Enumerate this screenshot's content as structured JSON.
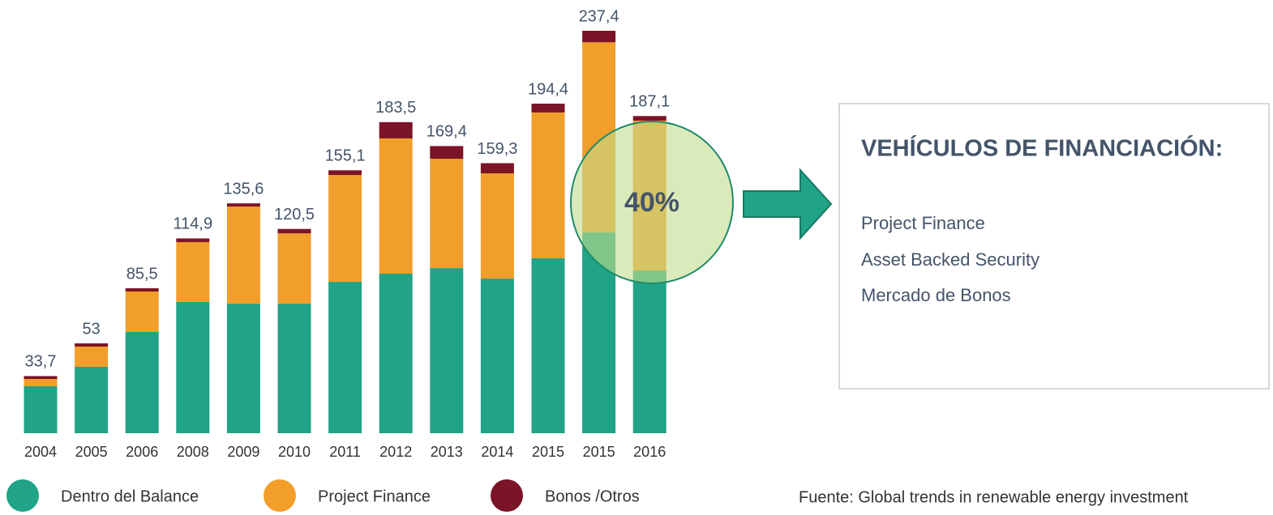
{
  "chart_data": {
    "type": "bar",
    "stacked": true,
    "categories": [
      "2004",
      "2005",
      "2006",
      "2008",
      "2009",
      "2010",
      "2011",
      "2012",
      "2013",
      "2014",
      "2015",
      "2015",
      "2016"
    ],
    "series": [
      {
        "name": "Dentro del Balance",
        "color": "#20a386",
        "values": [
          27.7,
          39.2,
          59.7,
          77.4,
          76.4,
          76.4,
          89.3,
          94.1,
          97.4,
          91.2,
          103.2,
          118.4,
          96.0
        ]
      },
      {
        "name": "Project Finance",
        "color": "#f19e2a",
        "values": [
          4.3,
          11.9,
          23.9,
          35.3,
          57.3,
          41.5,
          63.0,
          79.8,
          64.5,
          62.1,
          86.0,
          112.2,
          88.4
        ]
      },
      {
        "name": "Bonos /Otros",
        "color": "#7b1426",
        "values": [
          1.7,
          1.9,
          1.9,
          2.2,
          1.9,
          2.6,
          2.8,
          9.6,
          7.5,
          6.0,
          5.2,
          6.8,
          2.7
        ]
      }
    ],
    "totals": [
      33.7,
      53,
      85.5,
      114.9,
      135.6,
      120.5,
      155.1,
      183.5,
      169.4,
      159.3,
      194.4,
      237.4,
      187.1
    ],
    "total_labels": [
      "33,7",
      "53",
      "85,5",
      "114,9",
      "135,6",
      "120,5",
      "155,1",
      "183,5",
      "169,4",
      "159,3",
      "194,4",
      "237,4",
      "187,1"
    ],
    "annotation": "40%"
  },
  "panel": {
    "title": "VEHÍCULOS DE FINANCIACIÓN:",
    "items": [
      "Project Finance",
      "Asset Backed Security",
      "Mercado de Bonos"
    ]
  },
  "source": "Fuente: Global trends in renewable energy investment"
}
